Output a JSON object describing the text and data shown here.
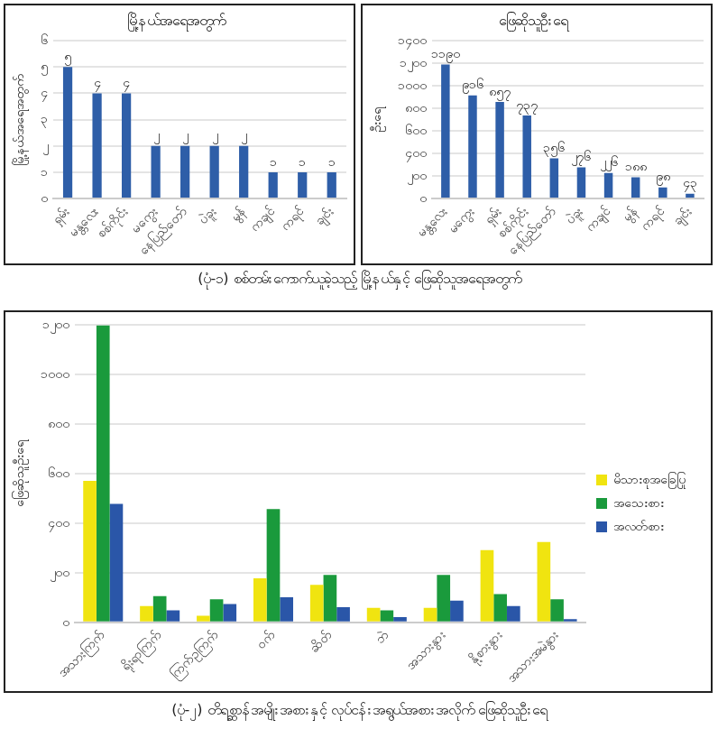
{
  "chart_data": [
    {
      "type": "bar",
      "title": "မြို့နယ်အရေအတွက်",
      "ylabel": "မြို့နယ်အရေအတွက်",
      "categories": [
        "ရှမ်း",
        "မန္တလေး",
        "စစ်ကိုင်း",
        "မကွေး",
        "နေပြည်တော်",
        "ပဲခူး",
        "မွန်",
        "ကချင်",
        "ကရင်",
        "ချင်း"
      ],
      "values": [
        5,
        4,
        4,
        2,
        2,
        2,
        2,
        1,
        1,
        1
      ],
      "value_labels": [
        "၅",
        "၄",
        "၄",
        "၂",
        "၂",
        "၂",
        "၂",
        "၁",
        "၁",
        "၁"
      ],
      "color": "#2e5ea8",
      "ylim": [
        0,
        6
      ],
      "yticks": [
        {
          "value": 0,
          "label": "၀"
        },
        {
          "value": 1,
          "label": "၁"
        },
        {
          "value": 2,
          "label": "၂"
        },
        {
          "value": 3,
          "label": "၃"
        },
        {
          "value": 4,
          "label": "၄"
        },
        {
          "value": 5,
          "label": "၅"
        },
        {
          "value": 6,
          "label": "၆"
        }
      ],
      "grid": "y",
      "annotations": [
        "(ပုံ-၁) စစ်တမ်းကောက်ယူခဲ့သည့် မြို့နယ်နှင့် ဖြေဆိုသူအရေအတွက်"
      ]
    },
    {
      "type": "bar",
      "title": "ဖြေဆိုသူဦးရေ",
      "ylabel": "ဦးရေ",
      "categories": [
        "မန္တလေး",
        "မကွေး",
        "ရှမ်း",
        "စစ်ကိုင်း",
        "နေပြည်တော်",
        "ပဲခူး",
        "ကချင်",
        "မွန်",
        "ကရင်",
        "ချင်း"
      ],
      "values": [
        1190,
        916,
        857,
        737,
        356,
        276,
        226,
        188,
        98,
        43
      ],
      "value_labels": [
        "၁၁၉၀",
        "၉၁၆",
        "၈၅၇",
        "၇၃၇",
        "၃၅၆",
        "၂၇၆",
        "၂၂၆",
        "၁၈၈",
        "၉၈",
        "၄၃"
      ],
      "color": "#2e5ea8",
      "ylim": [
        0,
        1400
      ],
      "yticks": [
        {
          "value": 0,
          "label": "၀"
        },
        {
          "value": 200,
          "label": "၂၀၀"
        },
        {
          "value": 400,
          "label": "၄၀၀"
        },
        {
          "value": 600,
          "label": "၆၀၀"
        },
        {
          "value": 800,
          "label": "၈၀၀"
        },
        {
          "value": 1000,
          "label": "၁၀၀၀"
        },
        {
          "value": 1200,
          "label": "၁၂၀၀"
        },
        {
          "value": 1400,
          "label": "၁၄၀၀"
        }
      ],
      "grid": "y"
    },
    {
      "type": "bar",
      "ylabel": "ဖြေဆိုသူဦးရေ",
      "categories": [
        "အသားကြက်",
        "ရိုးရာကြက်",
        "ကြက်ဥကြက်",
        "ဝက်",
        "ဆိတ်",
        "ဘဲ",
        "အသားနွား",
        "နို့စားနွား",
        "အသားအမဲနွား"
      ],
      "series": [
        {
          "name": "မိသားစုအခြေပြု",
          "color": "#f0e410",
          "values": [
            571,
            66,
            27,
            178,
            151,
            58,
            58,
            292,
            324
          ]
        },
        {
          "name": "အသေးစား",
          "color": "#1a9a3c",
          "values": [
            1200,
            106,
            93,
            457,
            191,
            48,
            191,
            114,
            93
          ]
        },
        {
          "name": "အလတ်စား",
          "color": "#2a56a8",
          "values": [
            478,
            48,
            74,
            101,
            61,
            21,
            88,
            66,
            13
          ]
        }
      ],
      "ylim": [
        0,
        1200
      ],
      "yticks": [
        {
          "value": 0,
          "label": "၀"
        },
        {
          "value": 200,
          "label": "၂၀၀"
        },
        {
          "value": 400,
          "label": "၄၀၀"
        },
        {
          "value": 600,
          "label": "၆၀၀"
        },
        {
          "value": 800,
          "label": "၈၀၀"
        },
        {
          "value": 1000,
          "label": "၁၀၀၀"
        },
        {
          "value": 1200,
          "label": "၁၂၀၀"
        }
      ],
      "grid": "y",
      "legend": "right",
      "annotations": [
        "(ပုံ-၂) တိရစ္ဆာန်အမျိုးအစားနှင့် လုပ်ငန်းအရွယ်အစားအလိုက် ဖြေဆိုသူဦးရေ"
      ]
    }
  ]
}
